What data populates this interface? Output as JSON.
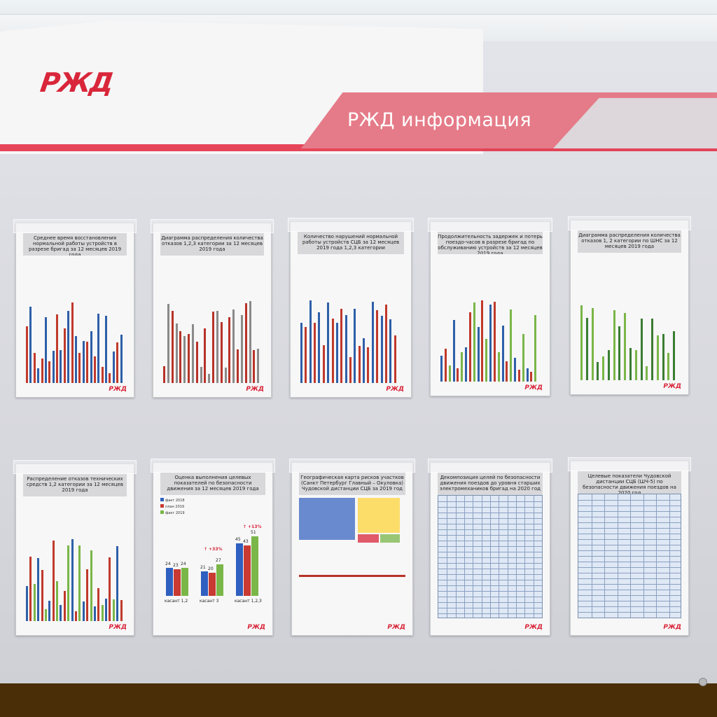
{
  "logo_text": "РЖД",
  "banner_title": "РЖД информация",
  "posters": [
    {
      "title": "Среднее время восстановления нормальной работы устройств в разрезе бригад за 12 месяцев 2019 года"
    },
    {
      "title": "Диаграмма распределения количества отказов 1,2,3 категории за 12 месяцев 2019 года"
    },
    {
      "title": "Количество нарушений нормальной работы устройств СЦБ за 12 месяцев 2019 года 1,2,3 категории"
    },
    {
      "title": "Продолжительность задержек и потерь поездо-часов в разрезе бригад по обслуживанию устройств за 12 месяцев 2019 года"
    },
    {
      "title": "Диаграмма распределения количества отказов 1, 2 категории по ШНС за 12 месяцев 2019 года"
    },
    {
      "title": "Распределение отказов технических средств 1,2 категории за 12 месяцев 2019 года"
    },
    {
      "title": "Оценка выполнения целевых показателей по безопасности движения за 12 месяцев 2019 года"
    },
    {
      "title": "Географическая карта рисков участков (Санкт Петербург Главный – Окуловка) Чудовской дистанции СЦБ за 2019 год"
    },
    {
      "title": "Декомпозиция целей по безопасности движения поездов до уровня старших электромехаников бригад на 2020 год"
    },
    {
      "title": "Целевые показатели Чудовской дистанции СЦБ (ШЧ-5) по безопасности движения поездов на 2020 год"
    }
  ],
  "target_chart": {
    "legend": [
      "факт 2018",
      "план 2019",
      "факт 2019"
    ],
    "categories": [
      "касант 1,2",
      "касант 3",
      "касант 1,2,3"
    ],
    "values": [
      [
        24,
        23,
        24
      ],
      [
        21,
        20,
        27
      ],
      [
        45,
        43,
        51
      ]
    ],
    "changes": [
      "+33%",
      "+13%"
    ],
    "colors": [
      "#2f5fbf",
      "#c83a32",
      "#7ab648"
    ]
  },
  "colors": {
    "brand_red": "#e3273d",
    "banner_pink": "#e57b88"
  }
}
